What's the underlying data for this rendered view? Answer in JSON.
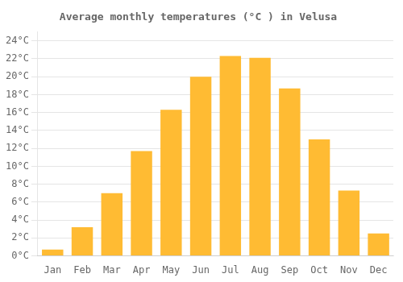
{
  "chart_data": {
    "type": "bar",
    "title": "Average monthly temperatures (°C ) in Velusa",
    "categories": [
      "Jan",
      "Feb",
      "Mar",
      "Apr",
      "May",
      "Jun",
      "Jul",
      "Aug",
      "Sep",
      "Oct",
      "Nov",
      "Dec"
    ],
    "values": [
      0.7,
      3.2,
      7.0,
      11.7,
      16.3,
      20.0,
      22.3,
      22.1,
      18.7,
      13.0,
      7.3,
      2.5
    ],
    "color": "#FFBB33",
    "ylim": [
      0,
      25
    ],
    "yticks": [
      {
        "value": 0,
        "label": "0°C"
      },
      {
        "value": 2,
        "label": "2°C"
      },
      {
        "value": 4,
        "label": "4°C"
      },
      {
        "value": 6,
        "label": "6°C"
      },
      {
        "value": 8,
        "label": "8°C"
      },
      {
        "value": 10,
        "label": "10°C"
      },
      {
        "value": 12,
        "label": "12°C"
      },
      {
        "value": 14,
        "label": "14°C"
      },
      {
        "value": 16,
        "label": "16°C"
      },
      {
        "value": 18,
        "label": "18°C"
      },
      {
        "value": 20,
        "label": "20°C"
      },
      {
        "value": 22,
        "label": "22°C"
      },
      {
        "value": 24,
        "label": "24°C"
      }
    ],
    "grid": true
  }
}
